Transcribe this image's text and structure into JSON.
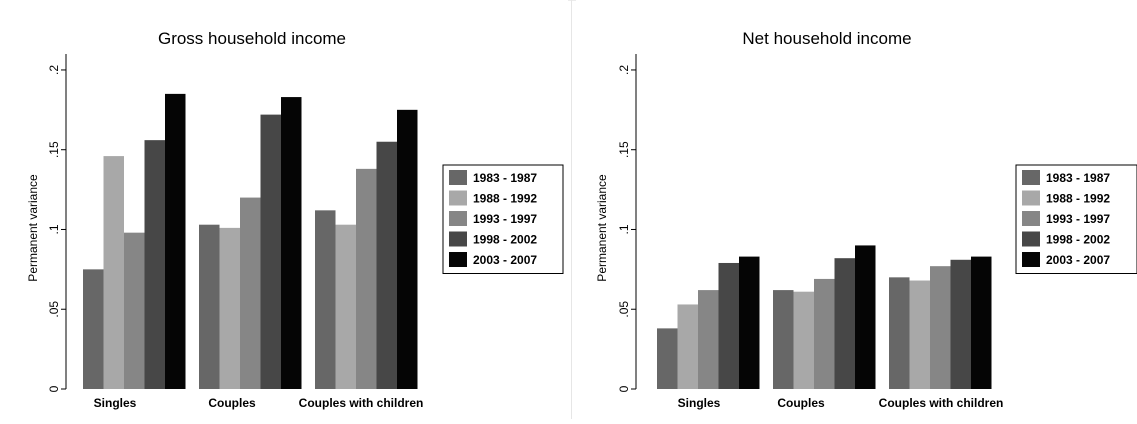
{
  "colors": {
    "series": [
      "#676767",
      "#a8a8a8",
      "#868686",
      "#474747",
      "#050505"
    ],
    "axis": "#000000",
    "background": "#ffffff"
  },
  "chart_data": [
    {
      "type": "bar",
      "title": "Gross household income",
      "xlabel": "",
      "ylabel": "Permanent variance",
      "ylim": [
        0,
        0.21
      ],
      "yticks": [
        0,
        0.05,
        0.1,
        0.15,
        0.2
      ],
      "ytick_labels": [
        "0",
        ".05",
        ".1",
        ".15",
        ".2"
      ],
      "grid": false,
      "legend_position": "right",
      "categories": [
        "Singles",
        "Couples",
        "Couples with children"
      ],
      "series": [
        {
          "name": "1983 - 1987",
          "values": [
            0.075,
            0.103,
            0.112
          ]
        },
        {
          "name": "1988 - 1992",
          "values": [
            0.146,
            0.101,
            0.103
          ]
        },
        {
          "name": "1993 - 1997",
          "values": [
            0.098,
            0.12,
            0.138
          ]
        },
        {
          "name": "1998 - 2002",
          "values": [
            0.156,
            0.172,
            0.155
          ]
        },
        {
          "name": "2003 - 2007",
          "values": [
            0.185,
            0.183,
            0.175
          ]
        }
      ]
    },
    {
      "type": "bar",
      "title": "Net household income",
      "xlabel": "",
      "ylabel": "Permanent variance",
      "ylim": [
        0,
        0.21
      ],
      "yticks": [
        0,
        0.05,
        0.1,
        0.15,
        0.2
      ],
      "ytick_labels": [
        "0",
        ".05",
        ".1",
        ".15",
        ".2"
      ],
      "grid": false,
      "legend_position": "right",
      "categories": [
        "Singles",
        "Couples",
        "Couples with children"
      ],
      "series": [
        {
          "name": "1983 - 1987",
          "values": [
            0.038,
            0.062,
            0.07
          ]
        },
        {
          "name": "1988 - 1992",
          "values": [
            0.053,
            0.061,
            0.068
          ]
        },
        {
          "name": "1993 - 1997",
          "values": [
            0.062,
            0.069,
            0.077
          ]
        },
        {
          "name": "1998 - 2002",
          "values": [
            0.079,
            0.082,
            0.081
          ]
        },
        {
          "name": "2003 - 2007",
          "values": [
            0.083,
            0.09,
            0.083
          ]
        }
      ]
    }
  ]
}
